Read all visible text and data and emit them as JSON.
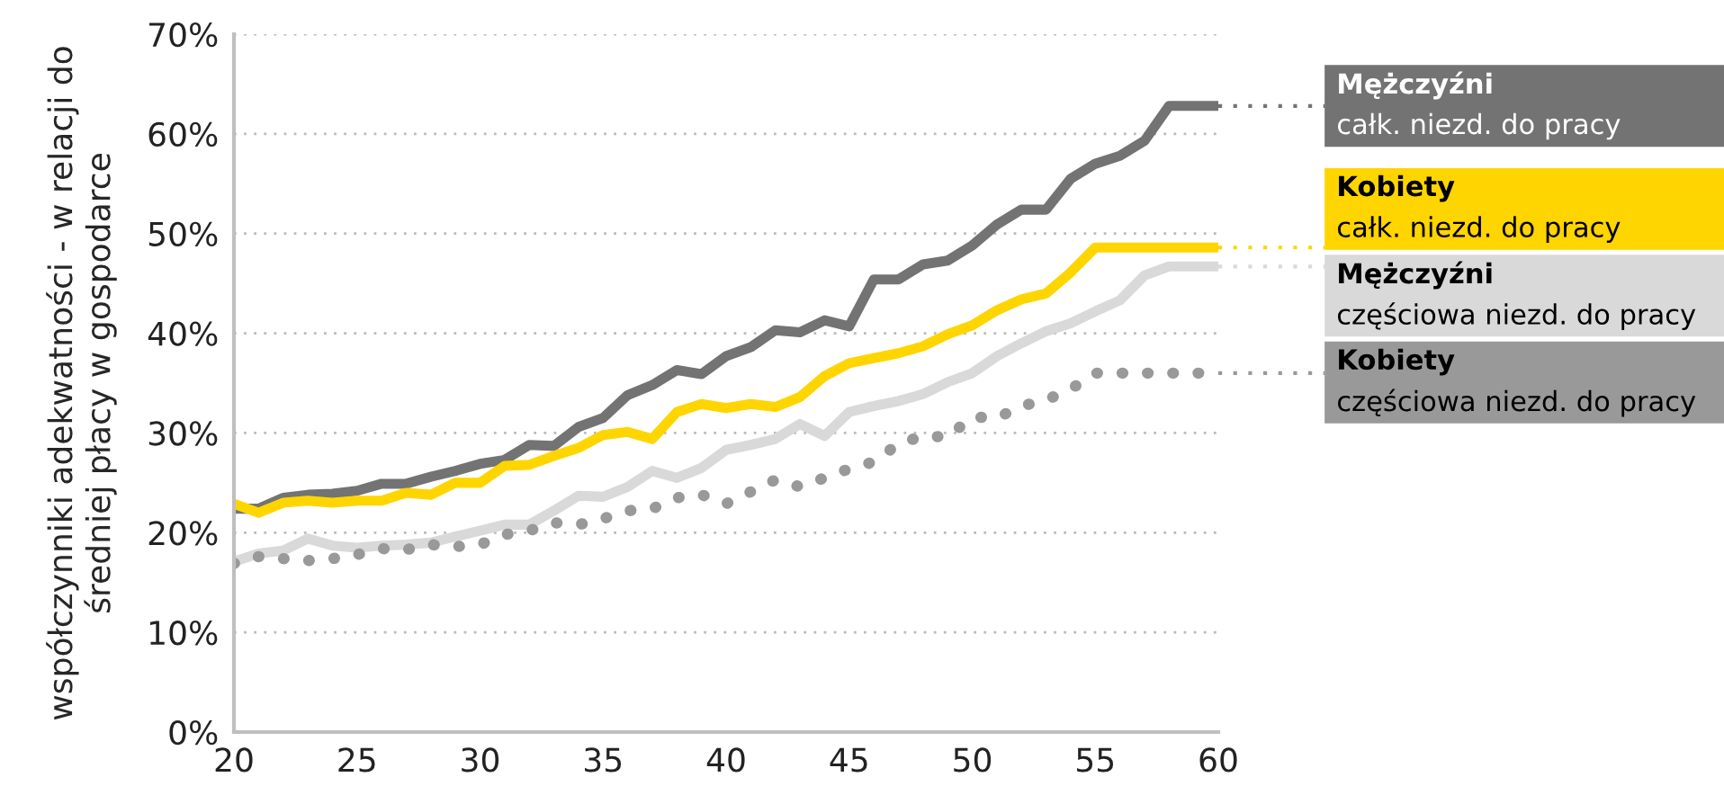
{
  "chart_data": {
    "type": "line",
    "ylabel": "współczynniki adekwatności - w relacji do\nśredniej płacy w gospodarce",
    "x": [
      20,
      21,
      22,
      23,
      24,
      25,
      26,
      27,
      28,
      29,
      30,
      31,
      32,
      33,
      34,
      35,
      36,
      37,
      38,
      39,
      40,
      41,
      42,
      43,
      44,
      45,
      46,
      47,
      48,
      49,
      50,
      51,
      52,
      53,
      54,
      55,
      56,
      57,
      58,
      59,
      60
    ],
    "series": [
      {
        "name": "Mężczyźni\ncałk. niezd. do pracy",
        "color": "#737373",
        "line_style": "solid",
        "values": [
          22.4,
          22.4,
          23.5,
          23.8,
          23.9,
          24.2,
          24.9,
          24.9,
          25.6,
          26.2,
          26.9,
          27.3,
          28.8,
          28.7,
          30.6,
          31.5,
          33.8,
          34.8,
          36.3,
          35.9,
          37.7,
          38.6,
          40.3,
          40.1,
          41.3,
          40.7,
          45.4,
          45.4,
          46.9,
          47.3,
          48.8,
          50.9,
          52.4,
          52.4,
          55.5,
          57.0,
          57.8,
          59.3,
          62.8,
          62.8,
          62.8
        ]
      },
      {
        "name": "Kobiety\ncałk. niezd. do pracy",
        "color": "#ffd500",
        "line_style": "solid",
        "values": [
          22.9,
          22.0,
          23.0,
          23.2,
          23.0,
          23.2,
          23.2,
          24.0,
          23.8,
          25.0,
          25.0,
          26.7,
          26.8,
          27.7,
          28.5,
          29.8,
          30.1,
          29.4,
          32.1,
          32.9,
          32.5,
          32.9,
          32.6,
          33.6,
          35.7,
          37.0,
          37.5,
          38.0,
          38.7,
          39.9,
          40.8,
          42.3,
          43.4,
          44.0,
          46.1,
          48.6,
          48.6,
          48.6,
          48.6,
          48.6,
          48.6
        ]
      },
      {
        "name": "Mężczyźni\nczęściowa niezd. do pracy",
        "color": "#d9d9d9",
        "line_style": "solid",
        "values": [
          17.1,
          17.9,
          18.2,
          19.4,
          18.7,
          18.5,
          18.7,
          18.8,
          19.0,
          19.6,
          20.2,
          20.8,
          20.8,
          22.2,
          23.7,
          23.6,
          24.6,
          26.2,
          25.5,
          26.5,
          28.3,
          28.8,
          29.4,
          30.9,
          29.7,
          32.1,
          32.7,
          33.2,
          33.9,
          35.1,
          36.0,
          37.7,
          39.0,
          40.2,
          41.0,
          42.2,
          43.3,
          45.8,
          46.7,
          46.7,
          46.7
        ]
      },
      {
        "name": "Kobiety\nczęściowa niezd. do pracy",
        "color": "#999999",
        "line_style": "dotted",
        "values": [
          16.9,
          17.6,
          17.4,
          17.2,
          17.4,
          17.8,
          18.4,
          18.3,
          18.8,
          18.6,
          18.8,
          19.8,
          20.2,
          21.0,
          20.8,
          21.4,
          22.2,
          22.4,
          23.5,
          23.8,
          22.9,
          24.1,
          25.3,
          24.6,
          25.5,
          26.4,
          27.1,
          28.9,
          29.7,
          29.6,
          31.6,
          31.5,
          32.7,
          33.3,
          34.4,
          36.0,
          36.0,
          36.0,
          36.0,
          36.0,
          36.0
        ]
      }
    ],
    "xlim": [
      20,
      60
    ],
    "xticks": [
      20,
      25,
      30,
      35,
      40,
      45,
      50,
      55,
      60
    ],
    "ylim": [
      0,
      70
    ],
    "yticks": [
      {
        "value": 0,
        "label": "0%"
      },
      {
        "value": 10,
        "label": "10%"
      },
      {
        "value": 20,
        "label": "20%"
      },
      {
        "value": 30,
        "label": "30%"
      },
      {
        "value": 40,
        "label": "40%"
      },
      {
        "value": 50,
        "label": "50%"
      },
      {
        "value": 60,
        "label": "60%"
      },
      {
        "value": 70,
        "label": "70%"
      }
    ],
    "grid": "y",
    "legend": "right"
  }
}
